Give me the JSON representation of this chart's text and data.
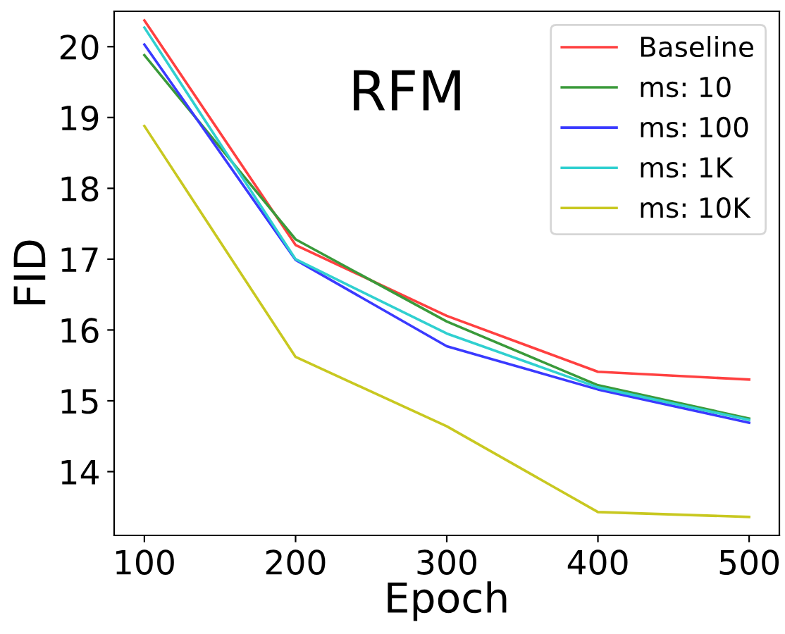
{
  "chart_data": {
    "type": "line",
    "title": "RFM",
    "xlabel": "Epoch",
    "ylabel": "FID",
    "x": [
      100,
      200,
      300,
      400,
      500
    ],
    "series": [
      {
        "name": "Baseline",
        "color": "#ff4040",
        "values": [
          20.37,
          17.2,
          16.2,
          15.41,
          15.3
        ]
      },
      {
        "name": "ms: 10",
        "color": "#3a9a3a",
        "values": [
          19.88,
          17.28,
          16.12,
          15.22,
          14.75
        ]
      },
      {
        "name": "ms: 100",
        "color": "#3a3aff",
        "values": [
          20.03,
          16.99,
          15.77,
          15.16,
          14.69
        ]
      },
      {
        "name": "ms: 1K",
        "color": "#30d0d0",
        "values": [
          20.27,
          17.0,
          15.95,
          15.19,
          14.73
        ]
      },
      {
        "name": "ms: 10K",
        "color": "#c8c820",
        "values": [
          18.88,
          15.62,
          14.64,
          13.43,
          13.36
        ]
      }
    ],
    "xlim": [
      80,
      520
    ],
    "ylim": [
      13.1,
      20.5
    ],
    "xticks": [
      100,
      200,
      300,
      400,
      500
    ],
    "yticks": [
      14,
      15,
      16,
      17,
      18,
      19,
      20
    ],
    "grid": false,
    "legend": "top right",
    "marker": "none",
    "line_style": "solid"
  }
}
